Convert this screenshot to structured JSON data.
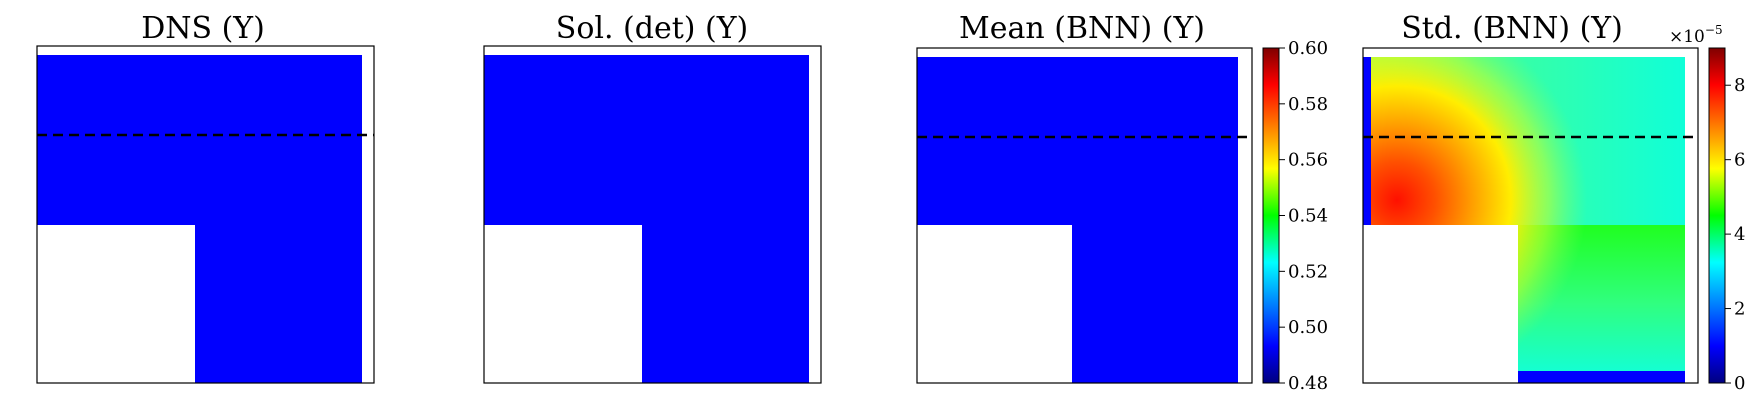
{
  "chart_data": [
    {
      "type": "heatmap",
      "title": "DNS (Y)",
      "field": "uniform",
      "value": 0.48,
      "fill_color": "#0000ff",
      "domain": "L-shaped (lower-left corner removed)",
      "dashed_line": true,
      "colorbar": null
    },
    {
      "type": "heatmap",
      "title": "Sol. (det) (Y)",
      "field": "uniform",
      "value": 0.48,
      "fill_color": "#0000ff",
      "domain": "L-shaped (lower-left corner removed)",
      "dashed_line": false,
      "colorbar": null
    },
    {
      "type": "heatmap",
      "title": "Mean (BNN) (Y)",
      "field": "uniform",
      "value": 0.48,
      "fill_color": "#0000ff",
      "domain": "L-shaped (lower-left corner removed)",
      "dashed_line": true,
      "colorbar": {
        "colormap": "jet",
        "range": [
          0.48,
          0.6
        ],
        "ticks": [
          "0.48",
          "0.50",
          "0.52",
          "0.54",
          "0.56",
          "0.58",
          "0.60"
        ]
      }
    },
    {
      "type": "heatmap",
      "title": "Std. (BNN) (Y)",
      "field": "varying",
      "description_of_field": "high (~8e-5) near upper-left region above the notch, decreasing toward right and bottom; thin low strip along bottom",
      "domain": "L-shaped (lower-left corner removed)",
      "dashed_line": true,
      "colorbar": {
        "colormap": "jet",
        "range": [
          0,
          9
        ],
        "ticks": [
          "0",
          "2",
          "4",
          "6",
          "8"
        ],
        "multiplier_base": "×10",
        "multiplier_exp": "−5"
      }
    }
  ],
  "colors": {
    "field_blue": "#0000ff",
    "frame": "#000000",
    "dashed_line": "#000000"
  }
}
